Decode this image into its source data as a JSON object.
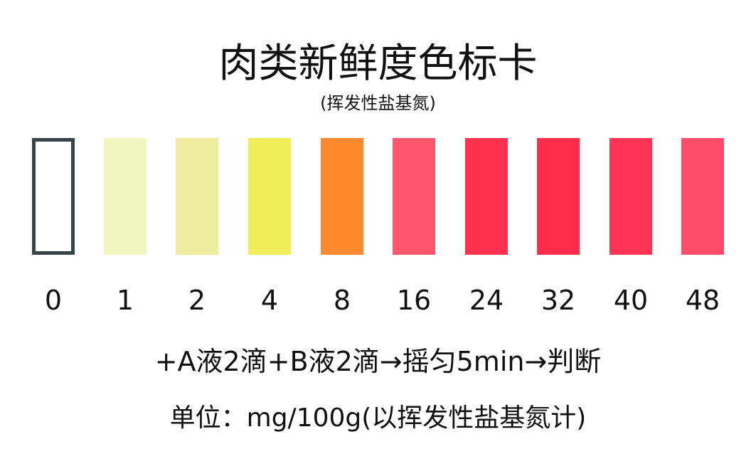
{
  "title": "肉类新鲜度色标卡",
  "subtitle": "(挥发性盐基氮)",
  "swatches": [
    {
      "label": "0",
      "color": "#ffffff"
    },
    {
      "label": "1",
      "color": "#eff6c0"
    },
    {
      "label": "2",
      "color": "#eeea9e"
    },
    {
      "label": "4",
      "color": "#f1ed58"
    },
    {
      "label": "8",
      "color": "#fd892f"
    },
    {
      "label": "16",
      "color": "#fe566d"
    },
    {
      "label": "24",
      "color": "#ff314f"
    },
    {
      "label": "32",
      "color": "#ff2c4a"
    },
    {
      "label": "40",
      "color": "#ff3355"
    },
    {
      "label": "48",
      "color": "#ff4c6b"
    }
  ],
  "first_swatch_border_color": "#37444a",
  "instructions": "+A液2滴+B液2滴→摇匀5min→判断",
  "unit": "单位：mg/100g(以挥发性盐基氮计)"
}
